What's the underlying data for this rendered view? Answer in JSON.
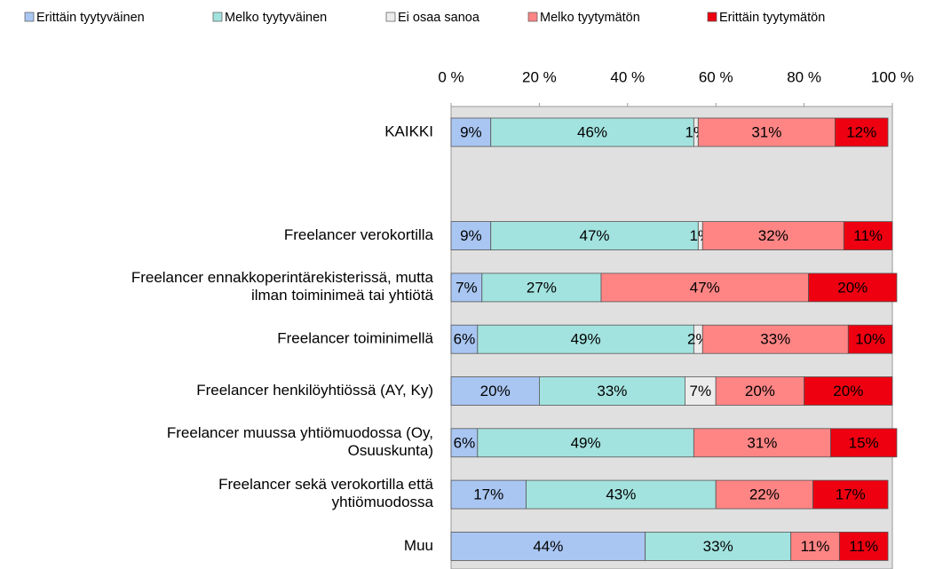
{
  "chart_data": {
    "type": "stacked_bar_horizontal",
    "categories": [
      "KAIKKI",
      null,
      "Freelancer verokortilla",
      "Freelancer ennakkoperintärekisterissä, mutta\nilman toiminimeä tai yhtiötä",
      "Freelancer toiminimellä",
      "Freelancer henkilöyhtiössä (AY, Ky)",
      "Freelancer muussa yhtiömuodossa (Oy,\nOsuuskunta)",
      "Freelancer sekä verokortilla että\nyhtiömuodossa",
      "Muu"
    ],
    "series": [
      {
        "name": "Erittäin tyytyväinen",
        "color": "#a9c6f2",
        "values": [
          9,
          null,
          9,
          7,
          6,
          20,
          6,
          17,
          44
        ],
        "value_labels": [
          "9%",
          null,
          "9%",
          "7%",
          "6%",
          "20%",
          "6%",
          "17%",
          "44%"
        ]
      },
      {
        "name": "Melko tyytyväinen",
        "color": "#a3e3df",
        "values": [
          46,
          null,
          47,
          27,
          49,
          33,
          49,
          43,
          33
        ],
        "value_labels": [
          "46%",
          null,
          "47%",
          "27%",
          "49%",
          "33%",
          "49%",
          "43%",
          "33%"
        ]
      },
      {
        "name": "Ei osaa sanoa",
        "color": "#ececec",
        "values": [
          1,
          null,
          1,
          0,
          2,
          7,
          0,
          0,
          0
        ],
        "value_labels": [
          "1%",
          null,
          "1%",
          null,
          "2%",
          "7%",
          null,
          null,
          null
        ]
      },
      {
        "name": "Melko tyytymätön",
        "color": "#ff8585",
        "values": [
          31,
          null,
          32,
          47,
          33,
          20,
          31,
          22,
          11
        ],
        "value_labels": [
          "31%",
          null,
          "32%",
          "47%",
          "33%",
          "20%",
          "31%",
          "22%",
          "11%"
        ]
      },
      {
        "name": "Erittäin tyytymätön",
        "color": "#ee0010",
        "values": [
          12,
          null,
          11,
          20,
          10,
          20,
          15,
          17,
          11
        ],
        "value_labels": [
          "12%",
          null,
          "11%",
          "20%",
          "10%",
          "20%",
          "15%",
          "17%",
          "11%"
        ]
      }
    ],
    "xlim": [
      0,
      100
    ],
    "xticks": [
      {
        "value": 0,
        "label": "0 %"
      },
      {
        "value": 20,
        "label": "20 %"
      },
      {
        "value": 40,
        "label": "40 %"
      },
      {
        "value": 60,
        "label": "60 %"
      },
      {
        "value": 80,
        "label": "80 %"
      },
      {
        "value": 100,
        "label": "100 %"
      }
    ],
    "legend": "top"
  }
}
